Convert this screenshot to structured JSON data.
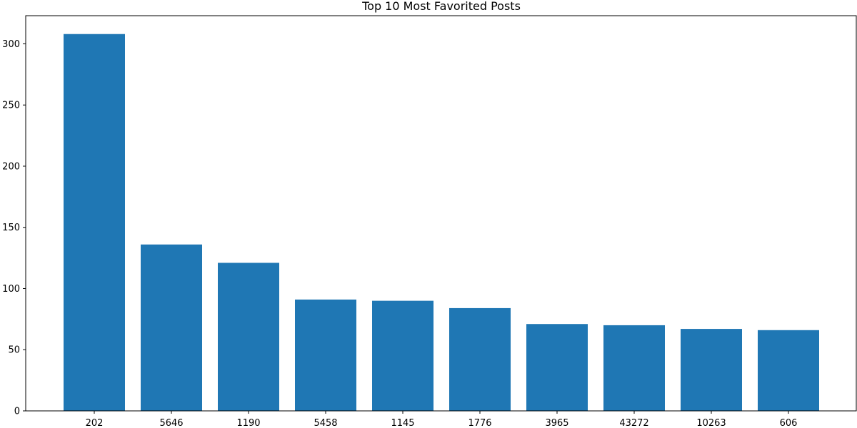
{
  "chart_data": {
    "type": "bar",
    "title": "Top 10 Most Favorited Posts",
    "xlabel": "",
    "ylabel": "",
    "categories": [
      "202",
      "5646",
      "1190",
      "5458",
      "1145",
      "1776",
      "3965",
      "43272",
      "10263",
      "606"
    ],
    "values": [
      308,
      136,
      121,
      91,
      90,
      84,
      71,
      70,
      67,
      66
    ],
    "ylim": [
      0,
      323
    ],
    "yticks": [
      0,
      50,
      100,
      150,
      200,
      250,
      300
    ],
    "bar_color": "#1f77b4",
    "grid": false,
    "legend": "none"
  }
}
